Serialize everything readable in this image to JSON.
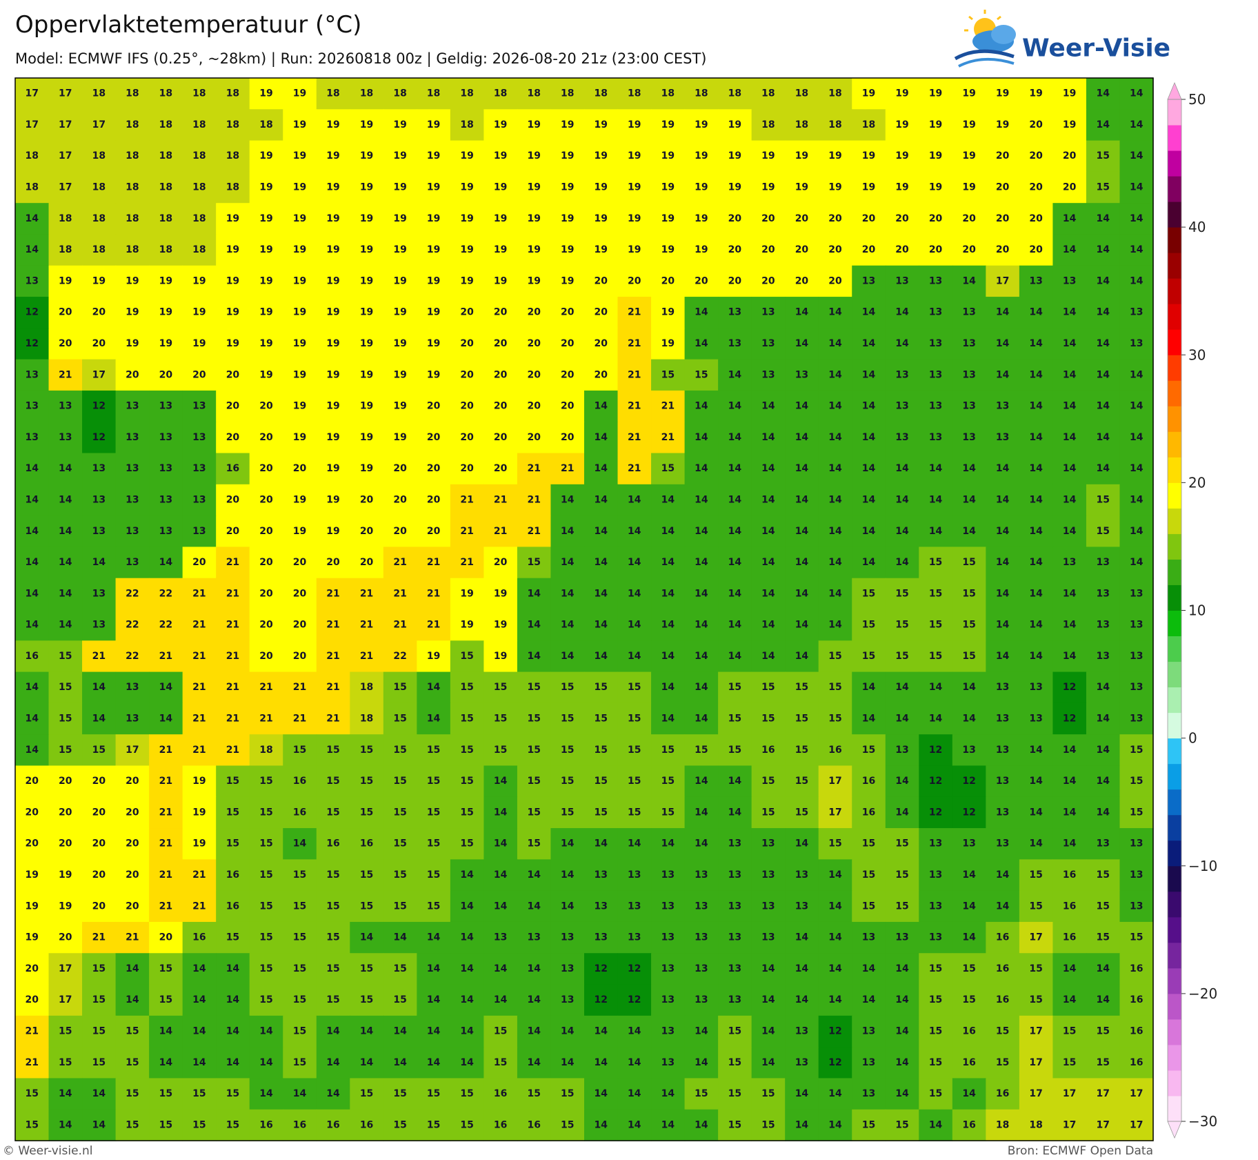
{
  "header": {
    "title": "Oppervlaktetemperatuur (°C)",
    "subtitle": "Model: ECMWF IFS (0.25°, ~28km)  |  Run: 20260818 00z  |  Geldig: 2026-08-20 21z (23:00 CEST)",
    "logo": "Weer-Visie"
  },
  "map": {
    "values": [
      [
        17,
        17,
        18,
        18,
        18,
        18,
        18,
        19,
        19,
        18,
        18,
        18,
        18,
        18,
        18,
        18,
        18,
        18,
        18,
        18,
        18,
        18,
        18,
        18,
        18,
        19,
        19,
        19,
        19,
        19,
        19,
        19,
        14,
        14
      ],
      [
        17,
        17,
        17,
        18,
        18,
        18,
        18,
        18,
        19,
        19,
        19,
        19,
        19,
        18,
        19,
        19,
        19,
        19,
        19,
        19,
        19,
        19,
        18,
        18,
        18,
        18,
        19,
        19,
        19,
        19,
        20,
        19,
        14,
        14
      ],
      [
        18,
        17,
        18,
        18,
        18,
        18,
        18,
        19,
        19,
        19,
        19,
        19,
        19,
        19,
        19,
        19,
        19,
        19,
        19,
        19,
        19,
        19,
        19,
        19,
        19,
        19,
        19,
        19,
        19,
        20,
        20,
        20,
        15,
        14
      ],
      [
        18,
        17,
        18,
        18,
        18,
        18,
        18,
        19,
        19,
        19,
        19,
        19,
        19,
        19,
        19,
        19,
        19,
        19,
        19,
        19,
        19,
        19,
        19,
        19,
        19,
        19,
        19,
        19,
        19,
        20,
        20,
        20,
        15,
        14
      ],
      [
        14,
        18,
        18,
        18,
        18,
        18,
        19,
        19,
        19,
        19,
        19,
        19,
        19,
        19,
        19,
        19,
        19,
        19,
        19,
        19,
        19,
        20,
        20,
        20,
        20,
        20,
        20,
        20,
        20,
        20,
        20,
        14,
        14,
        14
      ],
      [
        14,
        18,
        18,
        18,
        18,
        18,
        19,
        19,
        19,
        19,
        19,
        19,
        19,
        19,
        19,
        19,
        19,
        19,
        19,
        19,
        19,
        20,
        20,
        20,
        20,
        20,
        20,
        20,
        20,
        20,
        20,
        14,
        14,
        14
      ],
      [
        13,
        19,
        19,
        19,
        19,
        19,
        19,
        19,
        19,
        19,
        19,
        19,
        19,
        19,
        19,
        19,
        19,
        20,
        20,
        20,
        20,
        20,
        20,
        20,
        20,
        13,
        13,
        13,
        14,
        17,
        13,
        13,
        14,
        14
      ],
      [
        12,
        20,
        20,
        19,
        19,
        19,
        19,
        19,
        19,
        19,
        19,
        19,
        19,
        20,
        20,
        20,
        20,
        20,
        21,
        19,
        14,
        13,
        13,
        14,
        14,
        14,
        14,
        13,
        13,
        14,
        14,
        14,
        14,
        13
      ],
      [
        12,
        20,
        20,
        19,
        19,
        19,
        19,
        19,
        19,
        19,
        19,
        19,
        19,
        20,
        20,
        20,
        20,
        20,
        21,
        19,
        14,
        13,
        13,
        14,
        14,
        14,
        14,
        13,
        13,
        14,
        14,
        14,
        14,
        13
      ],
      [
        13,
        21,
        17,
        20,
        20,
        20,
        20,
        19,
        19,
        19,
        19,
        19,
        19,
        20,
        20,
        20,
        20,
        20,
        21,
        15,
        15,
        14,
        13,
        13,
        14,
        14,
        13,
        13,
        13,
        14,
        14,
        14,
        14,
        14
      ],
      [
        13,
        13,
        12,
        13,
        13,
        13,
        20,
        20,
        19,
        19,
        19,
        19,
        20,
        20,
        20,
        20,
        20,
        14,
        21,
        21,
        14,
        14,
        14,
        14,
        14,
        14,
        13,
        13,
        13,
        13,
        14,
        14,
        14,
        14
      ],
      [
        13,
        13,
        12,
        13,
        13,
        13,
        20,
        20,
        19,
        19,
        19,
        19,
        20,
        20,
        20,
        20,
        20,
        14,
        21,
        21,
        14,
        14,
        14,
        14,
        14,
        14,
        13,
        13,
        13,
        13,
        14,
        14,
        14,
        14
      ],
      [
        14,
        14,
        13,
        13,
        13,
        13,
        16,
        20,
        20,
        19,
        19,
        20,
        20,
        20,
        20,
        21,
        21,
        14,
        21,
        15,
        14,
        14,
        14,
        14,
        14,
        14,
        14,
        14,
        14,
        14,
        14,
        14,
        14,
        14
      ],
      [
        14,
        14,
        13,
        13,
        13,
        13,
        20,
        20,
        19,
        19,
        20,
        20,
        20,
        21,
        21,
        21,
        14,
        14,
        14,
        14,
        14,
        14,
        14,
        14,
        14,
        14,
        14,
        14,
        14,
        14,
        14,
        14,
        15,
        14
      ],
      [
        14,
        14,
        13,
        13,
        13,
        13,
        20,
        20,
        19,
        19,
        20,
        20,
        20,
        21,
        21,
        21,
        14,
        14,
        14,
        14,
        14,
        14,
        14,
        14,
        14,
        14,
        14,
        14,
        14,
        14,
        14,
        14,
        15,
        14
      ],
      [
        14,
        14,
        14,
        13,
        14,
        20,
        21,
        20,
        20,
        20,
        20,
        21,
        21,
        21,
        20,
        15,
        14,
        14,
        14,
        14,
        14,
        14,
        14,
        14,
        14,
        14,
        14,
        15,
        15,
        14,
        14,
        13,
        13,
        14
      ],
      [
        14,
        14,
        13,
        22,
        22,
        21,
        21,
        20,
        20,
        21,
        21,
        21,
        21,
        19,
        19,
        14,
        14,
        14,
        14,
        14,
        14,
        14,
        14,
        14,
        14,
        15,
        15,
        15,
        15,
        14,
        14,
        14,
        13,
        13
      ],
      [
        14,
        14,
        13,
        22,
        22,
        21,
        21,
        20,
        20,
        21,
        21,
        21,
        21,
        19,
        19,
        14,
        14,
        14,
        14,
        14,
        14,
        14,
        14,
        14,
        14,
        15,
        15,
        15,
        15,
        14,
        14,
        14,
        13,
        13
      ],
      [
        16,
        15,
        21,
        22,
        21,
        21,
        21,
        20,
        20,
        21,
        21,
        22,
        19,
        15,
        19,
        14,
        14,
        14,
        14,
        14,
        14,
        14,
        14,
        14,
        15,
        15,
        15,
        15,
        15,
        14,
        14,
        14,
        13,
        13
      ],
      [
        14,
        15,
        14,
        13,
        14,
        21,
        21,
        21,
        21,
        21,
        18,
        15,
        14,
        15,
        15,
        15,
        15,
        15,
        15,
        14,
        14,
        15,
        15,
        15,
        15,
        14,
        14,
        14,
        14,
        13,
        13,
        12,
        14,
        13
      ],
      [
        14,
        15,
        14,
        13,
        14,
        21,
        21,
        21,
        21,
        21,
        18,
        15,
        14,
        15,
        15,
        15,
        15,
        15,
        15,
        14,
        14,
        15,
        15,
        15,
        15,
        14,
        14,
        14,
        14,
        13,
        13,
        12,
        14,
        13
      ],
      [
        14,
        15,
        15,
        17,
        21,
        21,
        21,
        18,
        15,
        15,
        15,
        15,
        15,
        15,
        15,
        15,
        15,
        15,
        15,
        15,
        15,
        15,
        16,
        15,
        16,
        15,
        13,
        12,
        13,
        13,
        14,
        14,
        14,
        15
      ],
      [
        20,
        20,
        20,
        20,
        21,
        19,
        15,
        15,
        16,
        15,
        15,
        15,
        15,
        15,
        14,
        15,
        15,
        15,
        15,
        15,
        14,
        14,
        15,
        15,
        17,
        16,
        14,
        12,
        12,
        13,
        14,
        14,
        14,
        15
      ],
      [
        20,
        20,
        20,
        20,
        21,
        19,
        15,
        15,
        16,
        15,
        15,
        15,
        15,
        15,
        14,
        15,
        15,
        15,
        15,
        15,
        14,
        14,
        15,
        15,
        17,
        16,
        14,
        12,
        12,
        13,
        14,
        14,
        14,
        15
      ],
      [
        20,
        20,
        20,
        20,
        21,
        19,
        15,
        15,
        14,
        16,
        16,
        15,
        15,
        15,
        14,
        15,
        14,
        14,
        14,
        14,
        14,
        13,
        13,
        14,
        15,
        15,
        15,
        13,
        13,
        13,
        14,
        14,
        13,
        13
      ],
      [
        19,
        19,
        20,
        20,
        21,
        21,
        16,
        15,
        15,
        15,
        15,
        15,
        15,
        14,
        14,
        14,
        14,
        13,
        13,
        13,
        13,
        13,
        13,
        13,
        14,
        15,
        15,
        13,
        14,
        14,
        15,
        16,
        15,
        13
      ],
      [
        19,
        19,
        20,
        20,
        21,
        21,
        16,
        15,
        15,
        15,
        15,
        15,
        15,
        14,
        14,
        14,
        14,
        13,
        13,
        13,
        13,
        13,
        13,
        13,
        14,
        15,
        15,
        13,
        14,
        14,
        15,
        16,
        15,
        13
      ],
      [
        19,
        20,
        21,
        21,
        20,
        16,
        15,
        15,
        15,
        15,
        14,
        14,
        14,
        14,
        13,
        13,
        13,
        13,
        13,
        13,
        13,
        13,
        13,
        14,
        14,
        13,
        13,
        13,
        14,
        16,
        17,
        16,
        15,
        15
      ],
      [
        20,
        17,
        15,
        14,
        15,
        14,
        14,
        15,
        15,
        15,
        15,
        15,
        14,
        14,
        14,
        14,
        13,
        12,
        12,
        13,
        13,
        13,
        14,
        14,
        14,
        14,
        14,
        15,
        15,
        16,
        15,
        14,
        14,
        16
      ],
      [
        20,
        17,
        15,
        14,
        15,
        14,
        14,
        15,
        15,
        15,
        15,
        15,
        14,
        14,
        14,
        14,
        13,
        12,
        12,
        13,
        13,
        13,
        14,
        14,
        14,
        14,
        14,
        15,
        15,
        16,
        15,
        14,
        14,
        16
      ],
      [
        21,
        15,
        15,
        15,
        14,
        14,
        14,
        14,
        15,
        14,
        14,
        14,
        14,
        14,
        15,
        14,
        14,
        14,
        14,
        13,
        14,
        15,
        14,
        13,
        12,
        13,
        14,
        15,
        16,
        15,
        17,
        15,
        15,
        16
      ],
      [
        21,
        15,
        15,
        15,
        14,
        14,
        14,
        14,
        15,
        14,
        14,
        14,
        14,
        14,
        15,
        14,
        14,
        14,
        14,
        13,
        14,
        15,
        14,
        13,
        12,
        13,
        14,
        15,
        16,
        15,
        17,
        15,
        15,
        16
      ],
      [
        15,
        14,
        14,
        15,
        15,
        15,
        15,
        14,
        14,
        14,
        15,
        15,
        15,
        15,
        16,
        15,
        15,
        14,
        14,
        14,
        15,
        15,
        15,
        14,
        14,
        13,
        14,
        15,
        14,
        16,
        17,
        17,
        17,
        17
      ],
      [
        15,
        14,
        14,
        15,
        15,
        15,
        15,
        16,
        16,
        16,
        16,
        15,
        15,
        15,
        16,
        16,
        15,
        14,
        14,
        14,
        14,
        15,
        15,
        14,
        14,
        15,
        15,
        14,
        16,
        18,
        18,
        17,
        17,
        17
      ]
    ]
  },
  "colorbar": {
    "ylim": [
      -30,
      50
    ],
    "ticks": [
      50,
      40,
      30,
      20,
      10,
      0,
      {
        "value": -10,
        "label": "−10"
      },
      {
        "value": -20,
        "label": "−20"
      },
      {
        "value": -30,
        "label": "−30"
      }
    ],
    "colors": [
      "#fde0f8",
      "#f8b8f0",
      "#ea96e8",
      "#d876da",
      "#bb56c8",
      "#9a3cb6",
      "#76259e",
      "#560f8a",
      "#3a0a6e",
      "#1a0a4e",
      "#0a1c7a",
      "#0a3fa0",
      "#0a6cc8",
      "#0a9ee6",
      "#2ec4f6",
      "#d5fbe0",
      "#aaefb0",
      "#7ddb7b",
      "#4ccc4c",
      "#0cbc0c",
      "#078f07",
      "#3aad15",
      "#80c60f",
      "#c8d80c",
      "#ffff00",
      "#ffdd00",
      "#ffb800",
      "#ff9200",
      "#ff6a00",
      "#ff3c00",
      "#ff0000",
      "#e00000",
      "#c00000",
      "#9a0000",
      "#780000",
      "#4a0030",
      "#800060",
      "#c000a0",
      "#ff40d0",
      "#ffa8e0"
    ]
  },
  "footer": {
    "left": "© Weer-visie.nl",
    "right": "Bron: ECMWF Open Data"
  }
}
